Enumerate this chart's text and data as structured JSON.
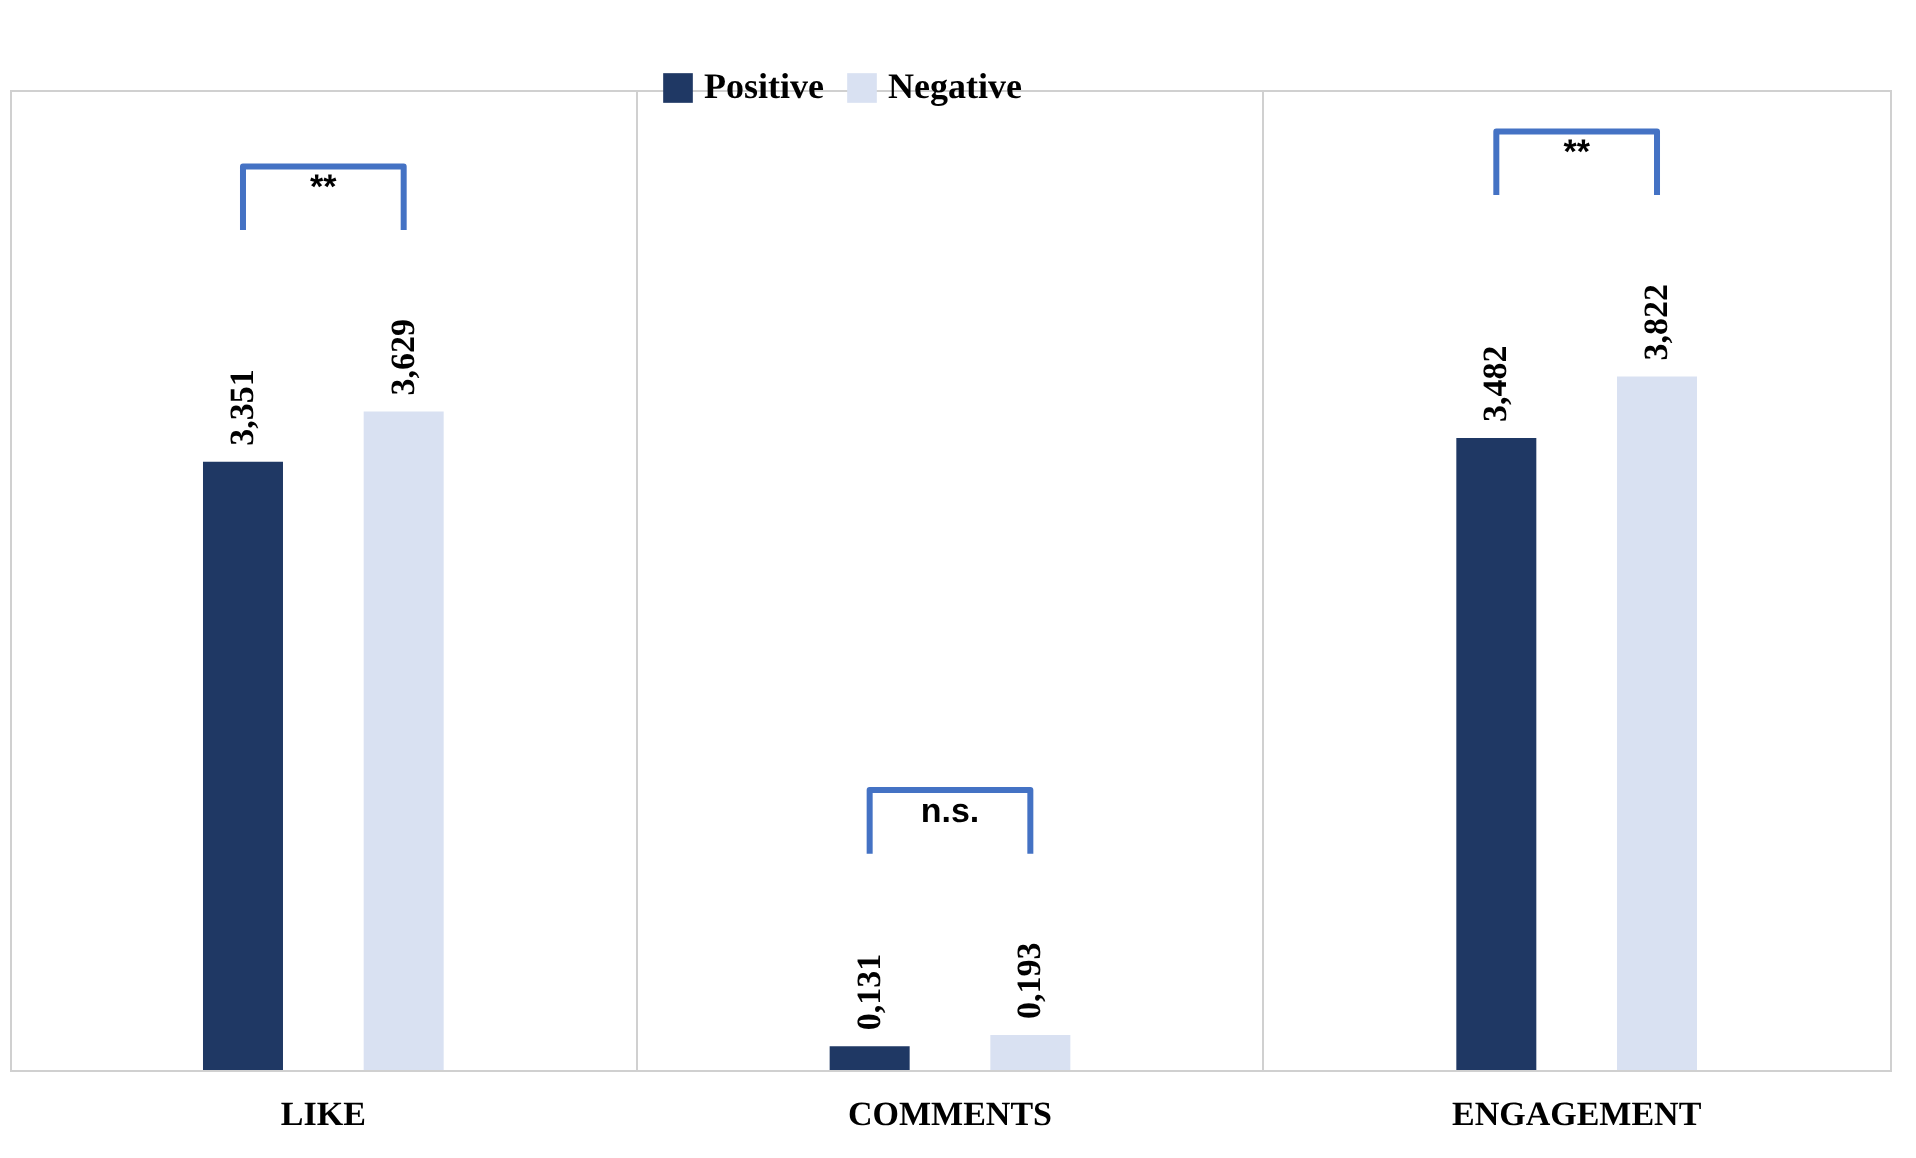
{
  "chart_data": {
    "type": "bar",
    "categories": [
      "LIKE",
      "COMMENTS",
      "ENGAGEMENT"
    ],
    "series": [
      {
        "name": "Positive",
        "color": "#1f3864",
        "values": [
          3.351,
          0.131,
          3.482
        ],
        "value_labels": [
          "3,351",
          "0,131",
          "3,482"
        ]
      },
      {
        "name": "Negative",
        "color": "#d9e1f2",
        "values": [
          3.629,
          0.193,
          3.822
        ],
        "value_labels": [
          "3,629",
          "0,193",
          "3,822"
        ]
      }
    ],
    "annotations": [
      "**",
      "n.s.",
      "**"
    ],
    "ylim": [
      0,
      5.4
    ],
    "tick_labels": "x",
    "grid": "x",
    "legend": "top"
  }
}
